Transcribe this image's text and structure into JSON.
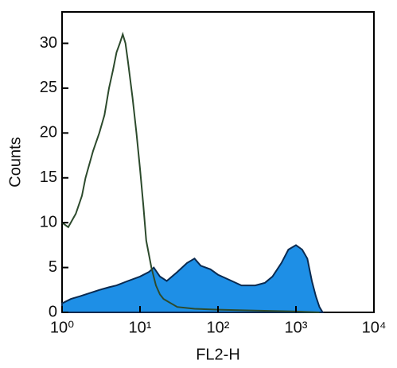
{
  "chart_data": {
    "type": "histogram-overlay",
    "x_label": "FL2-H",
    "y_label": "Counts",
    "xscale": "log",
    "xlim": [
      1,
      10000
    ],
    "ylim": [
      0,
      33.5
    ],
    "xticks": [
      {
        "value": 1,
        "label": "10⁰"
      },
      {
        "value": 10,
        "label": "10¹"
      },
      {
        "value": 100,
        "label": "10²"
      },
      {
        "value": 1000,
        "label": "10³"
      },
      {
        "value": 10000,
        "label": "10⁴"
      }
    ],
    "yticks": [
      0,
      5,
      10,
      15,
      20,
      25,
      30
    ],
    "series": [
      {
        "color": "#1e8fe6",
        "fill": true,
        "x": [
          1,
          1.3,
          1.7,
          2,
          3,
          4,
          5,
          7,
          10,
          13,
          15,
          18,
          22,
          30,
          40,
          50,
          60,
          80,
          100,
          150,
          200,
          300,
          400,
          500,
          650,
          800,
          1000,
          1200,
          1400,
          1600,
          1800,
          2000,
          2200
        ],
        "values": [
          1,
          1.5,
          1.8,
          2,
          2.5,
          2.8,
          3,
          3.5,
          4,
          4.5,
          5,
          4,
          3.5,
          4.5,
          5.5,
          6,
          5.2,
          4.8,
          4.2,
          3.5,
          3,
          3,
          3.3,
          4,
          5.5,
          7,
          7.5,
          7,
          6,
          3.5,
          1.8,
          0.6,
          0
        ]
      },
      {
        "color": "#2c4a2c",
        "fill": false,
        "x": [
          1,
          1.2,
          1.5,
          1.8,
          2,
          2.5,
          3,
          3.5,
          4,
          4.5,
          5,
          5.5,
          6,
          6.5,
          7,
          8,
          9,
          10,
          11,
          12,
          14,
          16,
          18,
          20,
          25,
          30,
          50,
          100,
          300,
          1000,
          2000
        ],
        "values": [
          10,
          9.5,
          11,
          13,
          15,
          18,
          20,
          22,
          25,
          27,
          29,
          30,
          31,
          30,
          28,
          24,
          20,
          16,
          12,
          8,
          5,
          3,
          2,
          1.5,
          1,
          0.6,
          0.4,
          0.3,
          0.2,
          0.1,
          0
        ]
      }
    ]
  }
}
